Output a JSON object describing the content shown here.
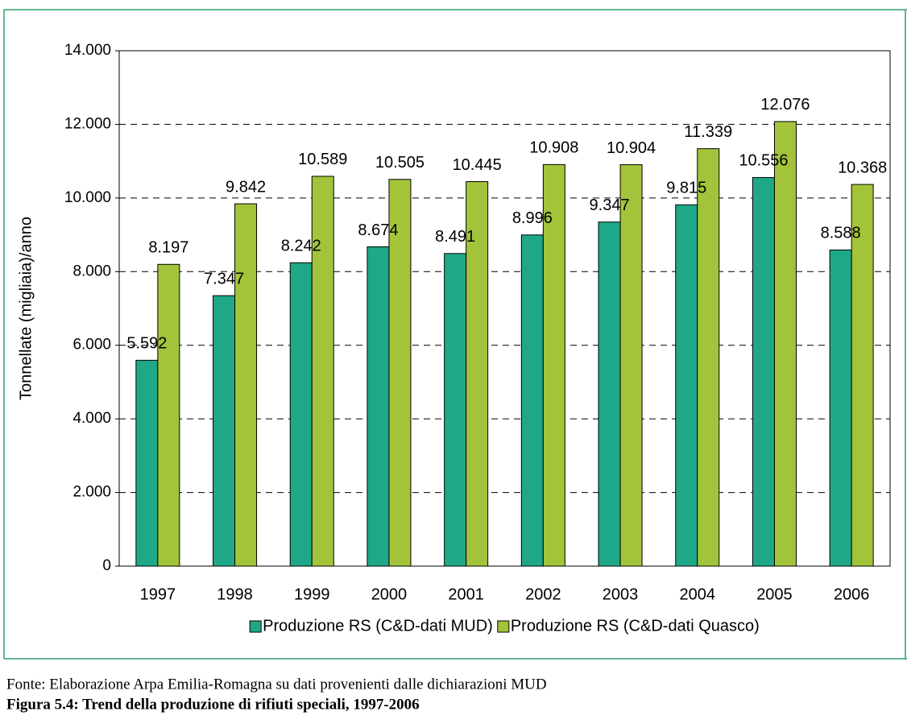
{
  "chart_data": {
    "type": "bar",
    "y_label": "Tonnellate  (migliaia)/anno",
    "categories": [
      "1997",
      "1998",
      "1999",
      "2000",
      "2001",
      "2002",
      "2003",
      "2004",
      "2005",
      "2006"
    ],
    "series": [
      {
        "name": "Produzione RS (C&D-dati MUD)",
        "color": "#1fa888",
        "values": [
          5592,
          7347,
          8242,
          8674,
          8491,
          8996,
          9347,
          9815,
          10556,
          8588
        ],
        "value_labels": [
          "5.592",
          "7.347",
          "8.242",
          "8.674",
          "8.491",
          "8.996",
          "9.347",
          "9.815",
          "10.556",
          "8.588"
        ]
      },
      {
        "name": "Produzione RS (C&D-dati Quasco)",
        "color": "#a3c43a",
        "values": [
          8197,
          9842,
          10589,
          10505,
          10445,
          10908,
          10904,
          11339,
          12076,
          10368
        ],
        "value_labels": [
          "8.197",
          "9.842",
          "10.589",
          "10.505",
          "10.445",
          "10.908",
          "10.904",
          "11.339",
          "12.076",
          "10.368"
        ]
      }
    ],
    "ylim": [
      0,
      14000
    ],
    "yticks": [
      0,
      {
        "value": 2000,
        "label": "2.000"
      },
      {
        "value": 4000,
        "label": "4.000"
      },
      {
        "value": 6000,
        "label": "6.000"
      },
      {
        "value": 8000,
        "label": "8.000"
      },
      {
        "value": 10000,
        "label": "10.000"
      },
      {
        "value": 12000,
        "label": "12.000"
      },
      {
        "value": 14000,
        "label": "14.000"
      }
    ],
    "grid": true,
    "legend": "bottom"
  },
  "source": "Fonte: Elaborazione Arpa Emilia-Romagna su dati provenienti dalle dichiarazioni MUD",
  "caption": "Figura 5.4: Trend della produzione di rifiuti speciali, 1997-2006"
}
